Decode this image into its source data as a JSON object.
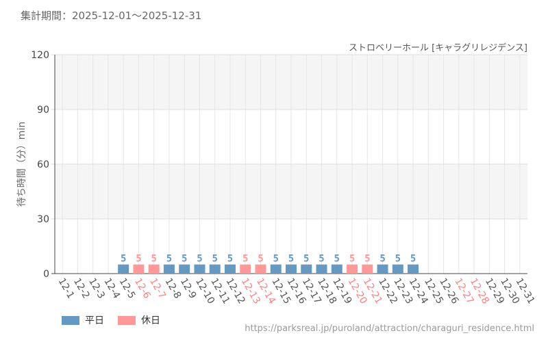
{
  "header": {
    "period": "集計期間：2025-12-01～2025-12-31",
    "attraction": "ストロベリーホール [キャラグリレジデンス]"
  },
  "legend": {
    "weekday_label": "平日",
    "holiday_label": "休日"
  },
  "source": "https://parksreal.jp/puroland/attraction/charaguri_residence.html",
  "colors": {
    "weekday": "#6699c2",
    "holiday": "#ff9999",
    "weekday_text": "#555555",
    "holiday_text": "#ff8080",
    "band": "#f5f5f5"
  },
  "chart_data": {
    "type": "bar",
    "ylabel": "待ち時間（分）min",
    "ylim": [
      0,
      120
    ],
    "yticks": [
      "0",
      "30",
      "60",
      "90",
      "120"
    ],
    "grid": true,
    "legend_position": "bottom-left",
    "categories": [
      "12-1",
      "12-2",
      "12-3",
      "12-4",
      "12-5",
      "12-6",
      "12-7",
      "12-8",
      "12-9",
      "12-10",
      "12-11",
      "12-12",
      "12-13",
      "12-14",
      "12-15",
      "12-16",
      "12-17",
      "12-18",
      "12-19",
      "12-20",
      "12-21",
      "12-22",
      "12-23",
      "12-24",
      "12-25",
      "12-26",
      "12-27",
      "12-28",
      "12-29",
      "12-30",
      "12-31"
    ],
    "values": [
      null,
      null,
      null,
      null,
      5,
      5,
      5,
      5,
      5,
      5,
      5,
      5,
      5,
      5,
      5,
      5,
      5,
      5,
      5,
      5,
      5,
      5,
      5,
      5,
      null,
      null,
      null,
      null,
      null,
      null,
      null
    ],
    "day_type": [
      "weekday",
      "weekday",
      "weekday",
      "weekday",
      "weekday",
      "holiday",
      "holiday",
      "weekday",
      "weekday",
      "weekday",
      "weekday",
      "weekday",
      "holiday",
      "holiday",
      "weekday",
      "weekday",
      "weekday",
      "weekday",
      "weekday",
      "holiday",
      "holiday",
      "weekday",
      "weekday",
      "weekday",
      "weekday",
      "weekday",
      "holiday",
      "holiday",
      "weekday",
      "weekday",
      "weekday"
    ],
    "data_labels": [
      null,
      null,
      null,
      null,
      "5",
      "5",
      "5",
      "5",
      "5",
      "5",
      "5",
      "5",
      "5",
      "5",
      "5",
      "5",
      "5",
      "5",
      "5",
      "5",
      "5",
      "5",
      "5",
      "5",
      null,
      null,
      null,
      null,
      null,
      null,
      null
    ]
  }
}
